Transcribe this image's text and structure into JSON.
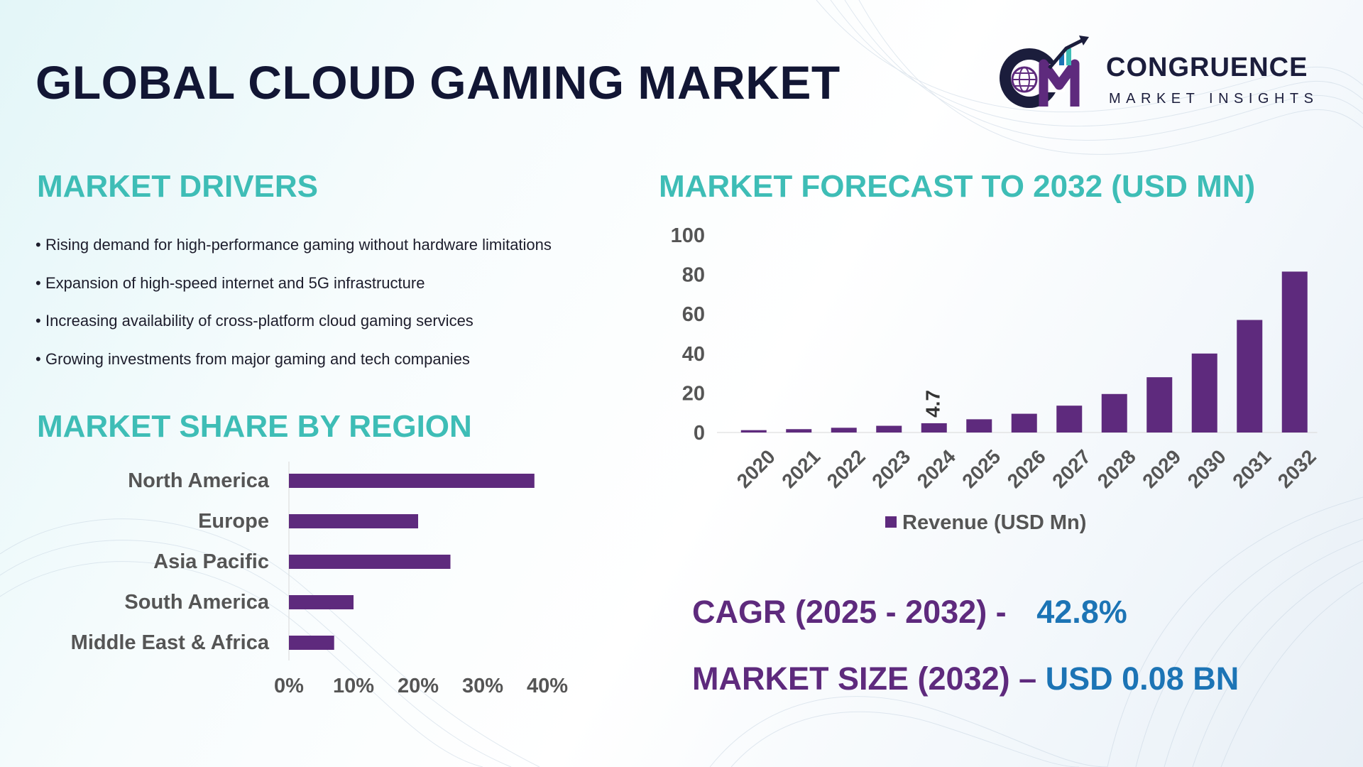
{
  "title": "GLOBAL CLOUD GAMING MARKET",
  "logo": {
    "name": "CONGRUENCE",
    "subtitle": "MARKET INSIGHTS",
    "icon": "cm-globe-logo-icon"
  },
  "drivers": {
    "heading": "MARKET DRIVERS",
    "bullet": "•",
    "items": [
      "Rising demand for high-performance gaming without hardware limitations",
      "Expansion of high-speed internet and 5G infrastructure",
      "Increasing availability of cross-platform cloud gaming services",
      "Growing investments from major gaming and tech companies"
    ]
  },
  "region": {
    "heading": "MARKET SHARE BY REGION"
  },
  "forecast": {
    "heading": "MARKET FORECAST TO 2032 (USD MN)"
  },
  "kpis": {
    "cagr_label": "CAGR (2025 - 2032) -",
    "cagr_value": "42.8%",
    "size_label": "MARKET SIZE (2032) –",
    "size_value": "USD 0.08 BN"
  },
  "colors": {
    "bar": "#5e2a7d",
    "heading_teal": "#3ebdb6",
    "kpi_purple": "#5e2a7d",
    "kpi_blue": "#1c74b5",
    "title": "#121634"
  },
  "chart_data": [
    {
      "type": "bar",
      "orientation": "horizontal",
      "categories": [
        "North America",
        "Europe",
        "Asia Pacific",
        "South America",
        "Middle East & Africa"
      ],
      "values": [
        38,
        20,
        25,
        10,
        7
      ],
      "xlim": [
        0,
        40
      ],
      "xticks": [
        "0%",
        "10%",
        "20%",
        "30%",
        "40%"
      ],
      "grid": false
    },
    {
      "type": "bar",
      "categories": [
        "2020",
        "2021",
        "2022",
        "2023",
        "2024",
        "2025",
        "2026",
        "2027",
        "2028",
        "2029",
        "2030",
        "2031",
        "2032"
      ],
      "series": [
        {
          "name": "Revenue (USD Mn)",
          "values": [
            1.2,
            1.7,
            2.4,
            3.4,
            4.7,
            6.7,
            9.5,
            13.6,
            19.5,
            28.0,
            40.0,
            57.0,
            81.5
          ]
        }
      ],
      "data_labels": [
        {
          "category": "2024",
          "label": "4.7"
        }
      ],
      "ylim": [
        0,
        100
      ],
      "yticks": [
        "0",
        "20",
        "40",
        "60",
        "80",
        "100"
      ],
      "legend": "bottom",
      "grid": false
    }
  ]
}
